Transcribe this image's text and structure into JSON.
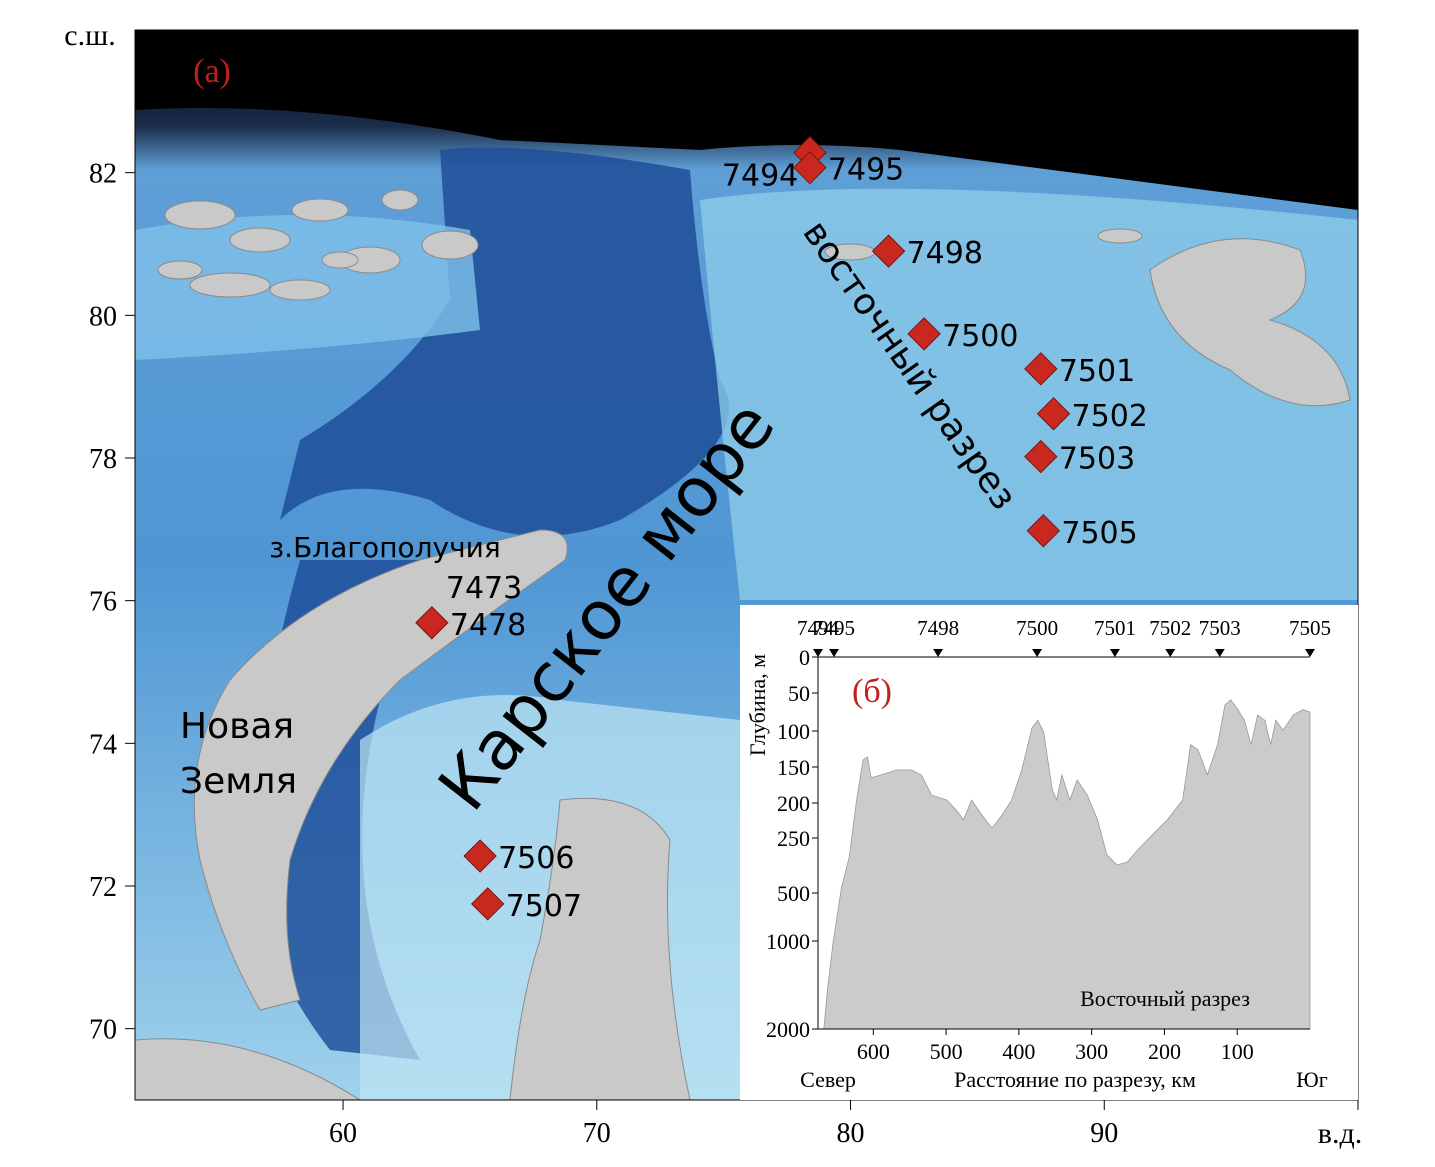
{
  "map": {
    "panel_label": "(а)",
    "lat_axis_label": "с.ш.",
    "lon_axis_label": "в.д.",
    "xlim": [
      51.8,
      100
    ],
    "ylim": [
      69,
      84
    ],
    "xticks": [
      60,
      70,
      80,
      90
    ],
    "yticks": [
      70,
      72,
      74,
      76,
      78,
      80,
      82
    ],
    "island_label": "з.Благополучия",
    "land_label": [
      "Новая",
      "Земля"
    ],
    "sea_label": "Карское море",
    "transect_label": "восточный разрез",
    "unmarked_station_label": "7473",
    "marker_color": "#c8281e",
    "stations": [
      {
        "label": "7494",
        "lon": 78.4,
        "lat": 82.28
      },
      {
        "label": "7495",
        "lon": 78.4,
        "lat": 82.07
      },
      {
        "label": "7498",
        "lon": 81.5,
        "lat": 80.9
      },
      {
        "label": "7500",
        "lon": 82.9,
        "lat": 79.74
      },
      {
        "label": "7501",
        "lon": 87.5,
        "lat": 79.25
      },
      {
        "label": "7502",
        "lon": 88.0,
        "lat": 78.62
      },
      {
        "label": "7503",
        "lon": 87.5,
        "lat": 78.02
      },
      {
        "label": "7505",
        "lon": 87.6,
        "lat": 76.98
      },
      {
        "label": "7478",
        "lon": 63.5,
        "lat": 75.69
      },
      {
        "label": "7506",
        "lon": 65.4,
        "lat": 72.42
      },
      {
        "label": "7507",
        "lon": 65.7,
        "lat": 71.75
      }
    ]
  },
  "profile": {
    "type": "area",
    "panel_label": "(б)",
    "title": "Восточный разрез",
    "y_axis_label": "Глубина, м",
    "x_axis_label": "Расстояние по разрезу, км",
    "left_label": "Север",
    "right_label": "Юг",
    "xlim": [
      676,
      0
    ],
    "xticks": [
      600,
      500,
      400,
      300,
      200,
      100
    ],
    "ylim": [
      0,
      2000
    ],
    "yticks": [
      0,
      50,
      100,
      150,
      200,
      250,
      500,
      1000,
      2000
    ],
    "color": "#cbcbcb",
    "stations": [
      {
        "label": "7494",
        "distance": 676
      },
      {
        "label": "7495",
        "distance": 654
      },
      {
        "label": "7498",
        "distance": 511
      },
      {
        "label": "7500",
        "distance": 375
      },
      {
        "label": "7501",
        "distance": 268
      },
      {
        "label": "7502",
        "distance": 192
      },
      {
        "label": "7503",
        "distance": 124
      },
      {
        "label": "7505",
        "distance": 0
      }
    ],
    "series": {
      "distance": [
        668,
        663,
        655,
        644,
        633,
        623,
        614,
        608,
        603,
        589,
        568,
        548,
        534,
        520,
        499,
        486,
        476,
        465,
        451,
        437,
        423,
        410,
        396,
        382,
        374,
        366,
        354,
        348,
        341,
        330,
        320,
        306,
        292,
        279,
        265,
        251,
        237,
        217,
        196,
        175,
        164,
        154,
        141,
        127,
        117,
        109,
        99,
        90,
        81,
        72,
        62,
        54,
        47,
        37,
        23,
        10,
        0
      ],
      "depth": [
        2000,
        1557,
        1000,
        480,
        335,
        196,
        140,
        136,
        165,
        161,
        154,
        154,
        161,
        189,
        196,
        210,
        224,
        196,
        217,
        236,
        217,
        196,
        154,
        96,
        86,
        101,
        182,
        196,
        161,
        196,
        168,
        189,
        224,
        327,
        373,
        359,
        305,
        246,
        224,
        196,
        119,
        126,
        161,
        119,
        66,
        59,
        72,
        86,
        119,
        79,
        86,
        119,
        86,
        99,
        79,
        72,
        75
      ]
    }
  }
}
